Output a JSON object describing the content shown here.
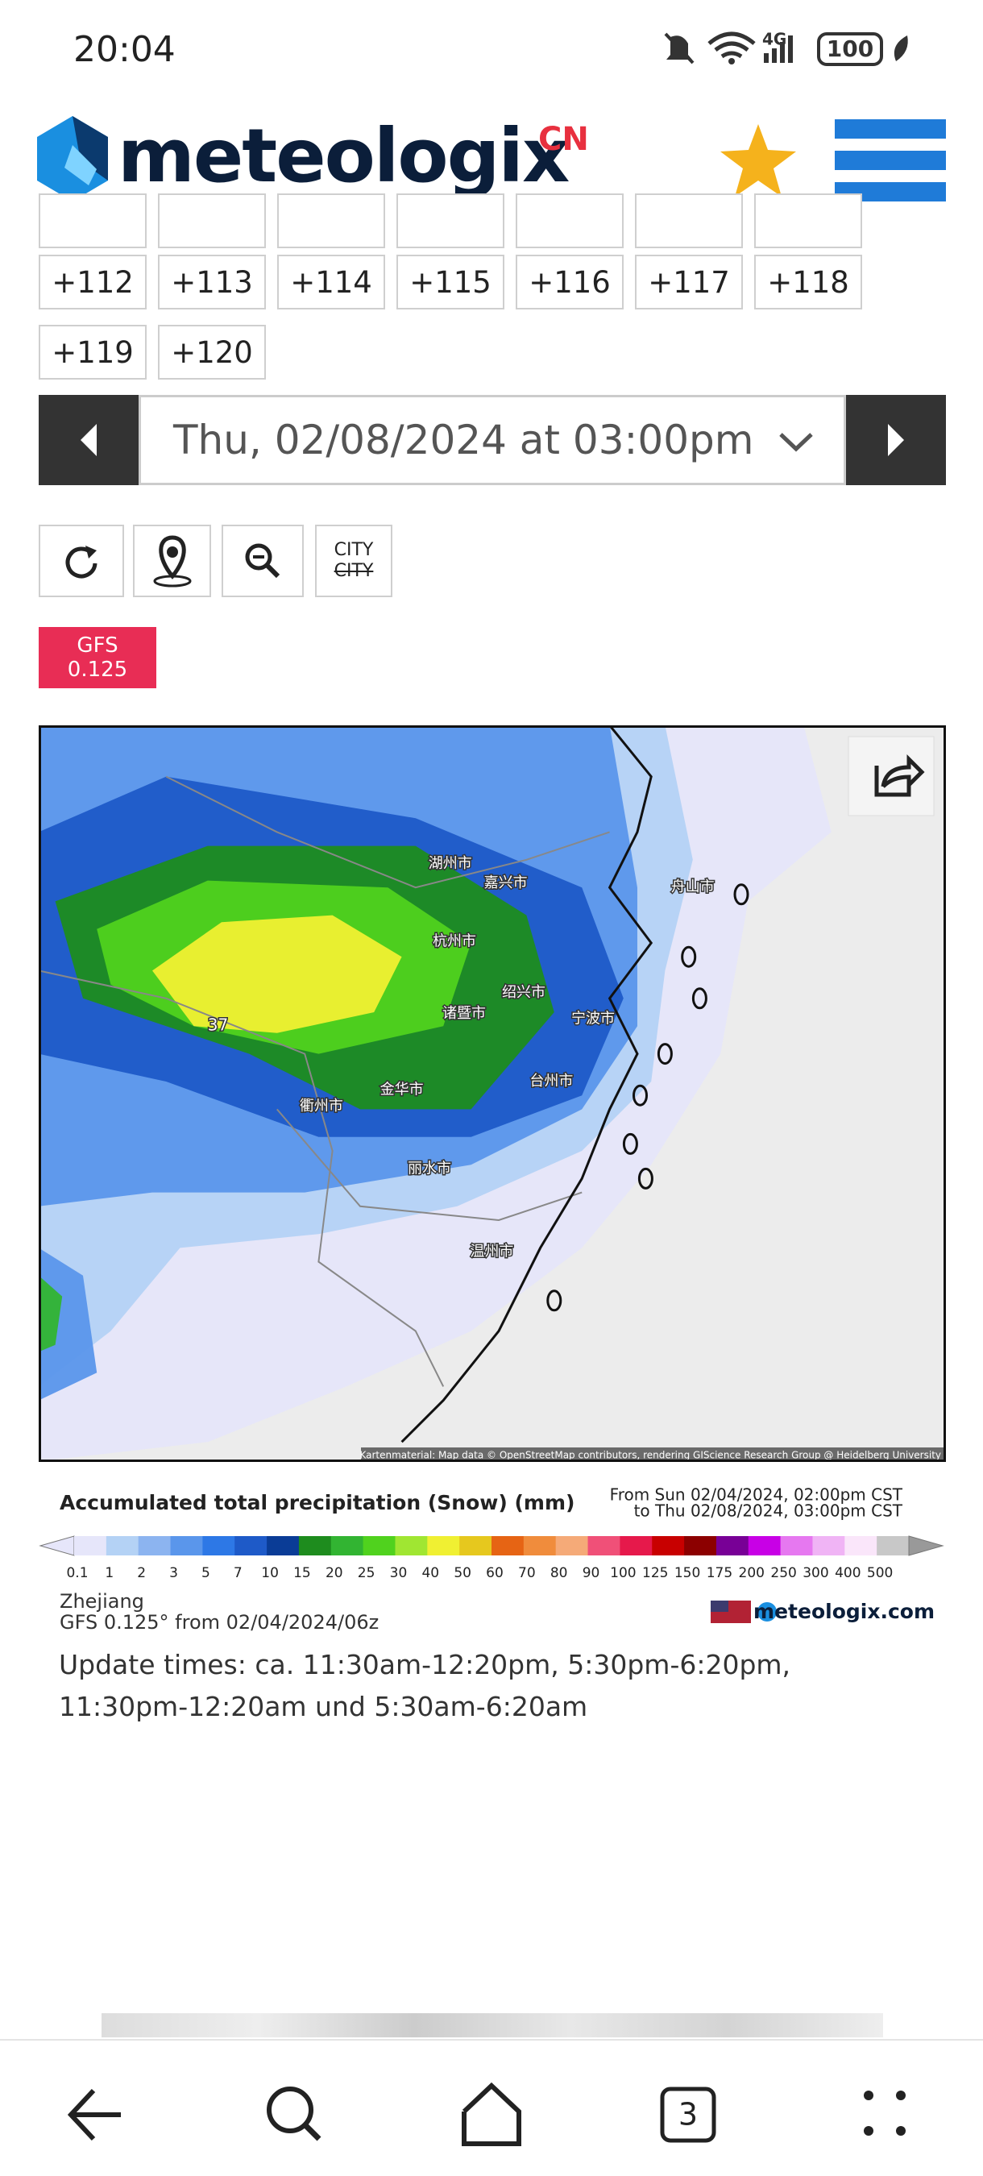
{
  "status_bar": {
    "time": "20:04",
    "network": "4G",
    "battery": "100"
  },
  "header": {
    "brand": "meteologix",
    "region": "CN"
  },
  "hour_buttons": [
    "+112",
    "+113",
    "+114",
    "+115",
    "+116",
    "+117",
    "+118",
    "+119",
    "+120"
  ],
  "date_selector": "Thu, 02/08/2024 at 03:00pm",
  "tools": {
    "city": "CITY",
    "city_struck": "CITY"
  },
  "model_badge": {
    "line1": "GFS",
    "line2": "0.125"
  },
  "map": {
    "labels": [
      "湖州市",
      "嘉兴市",
      "杭州市",
      "绍兴市",
      "诸暨市",
      "宁波市",
      "金华市",
      "衢州市",
      "丽水市",
      "台州市",
      "温州市",
      "舟山市"
    ],
    "value_label": "37",
    "attribution": "Kartenmaterial: Map data © OpenStreetMap contributors, rendering GIScience Research Group @ Heidelberg University"
  },
  "legend": {
    "title": "Accumulated total precipitation (Snow) (mm)",
    "period_from": "From Sun 02/04/2024, 02:00pm CST",
    "period_to": "to Thu 02/08/2024, 03:00pm CST",
    "stops": [
      0.1,
      1,
      2,
      3,
      5,
      7,
      10,
      15,
      20,
      25,
      30,
      40,
      50,
      60,
      70,
      80,
      90,
      100,
      125,
      150,
      175,
      200,
      250,
      300,
      400,
      500
    ],
    "colors": [
      "#e6e6fa",
      "#b4d2f5",
      "#8cb4f0",
      "#5a96eb",
      "#2d78e6",
      "#1e5ac8",
      "#0a3c96",
      "#1e8c1e",
      "#32b432",
      "#50d21e",
      "#a0e632",
      "#f0f032",
      "#e6c81e",
      "#e66414",
      "#f08c3c",
      "#f5aa78",
      "#f05078",
      "#e6194b",
      "#c80000",
      "#8c0000",
      "#780096",
      "#c800e6",
      "#e678f0",
      "#f0b4f5",
      "#fae6fa",
      "#c8c8c8"
    ]
  },
  "region": "Zhejiang",
  "run": "GFS 0.125° from 02/04/2024/06z",
  "site": "meteologix.com",
  "update_times": [
    "Update times: ca. 11:30am-12:20pm, 5:30pm-6:20pm,",
    "11:30pm-12:20am und 5:30am-6:20am"
  ],
  "nav": {
    "tabs": "3"
  }
}
